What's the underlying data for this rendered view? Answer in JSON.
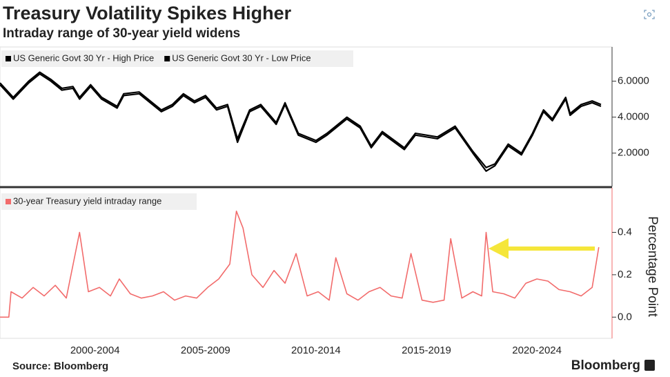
{
  "header": {
    "title": "Treasury Volatility Spikes Higher",
    "subtitle": "Intraday range of 30-year yield widens"
  },
  "footer": {
    "source": "Source: Bloomberg",
    "brand": "Bloomberg"
  },
  "chart_data": [
    {
      "type": "line",
      "x": [
        1998.2,
        1998.8,
        1999.5,
        2000.0,
        2000.5,
        2001.0,
        2001.5,
        2001.8,
        2002.3,
        2002.8,
        2003.5,
        2003.8,
        2004.5,
        2005.0,
        2005.5,
        2006.0,
        2006.5,
        2007.0,
        2007.5,
        2008.0,
        2008.5,
        2008.95,
        2009.5,
        2010.0,
        2010.7,
        2011.1,
        2011.7,
        2012.5,
        2013.0,
        2013.9,
        2014.5,
        2015.0,
        2015.5,
        2016.5,
        2017.0,
        2018.0,
        2018.8,
        2019.6,
        2020.2,
        2020.6,
        2021.2,
        2021.8,
        2022.3,
        2022.8,
        2023.2,
        2023.8,
        2024.0,
        2024.5,
        2025.0,
        2025.4
      ],
      "series": [
        {
          "name": "US Generic Govt 30 Yr - High Price",
          "color": "#000000",
          "values": [
            5.9,
            5.1,
            6.0,
            6.5,
            6.1,
            5.6,
            5.7,
            5.1,
            5.8,
            5.1,
            4.6,
            5.3,
            5.4,
            4.9,
            4.4,
            4.7,
            5.3,
            4.9,
            5.2,
            4.5,
            4.7,
            2.8,
            4.4,
            4.7,
            3.7,
            4.8,
            3.1,
            2.7,
            3.1,
            4.0,
            3.5,
            2.4,
            3.2,
            2.3,
            3.1,
            2.9,
            3.5,
            2.1,
            1.2,
            1.4,
            2.5,
            2.0,
            3.1,
            4.4,
            3.9,
            5.1,
            4.2,
            4.7,
            4.9,
            4.7
          ]
        },
        {
          "name": "US Generic Govt 30 Yr - Low Price",
          "color": "#000000",
          "values": [
            5.8,
            5.0,
            5.9,
            6.4,
            6.0,
            5.5,
            5.6,
            5.0,
            5.7,
            5.0,
            4.5,
            5.2,
            5.3,
            4.8,
            4.3,
            4.6,
            5.2,
            4.8,
            5.1,
            4.4,
            4.6,
            2.6,
            4.3,
            4.6,
            3.6,
            4.7,
            3.0,
            2.6,
            3.0,
            3.9,
            3.4,
            2.3,
            3.1,
            2.2,
            3.0,
            2.8,
            3.4,
            2.0,
            1.0,
            1.3,
            2.4,
            1.9,
            3.0,
            4.3,
            3.8,
            5.0,
            4.1,
            4.6,
            4.8,
            4.6
          ]
        }
      ],
      "xlim": [
        1998.2,
        2025.9
      ],
      "ylim": [
        0.15,
        7.9
      ],
      "yticks": [
        {
          "value": 2,
          "label": "2.0000"
        },
        {
          "value": 4,
          "label": "4.0000"
        },
        {
          "value": 6,
          "label": "6.0000"
        }
      ]
    },
    {
      "type": "line",
      "x": [
        1998.2,
        1998.6,
        1998.7,
        1999.2,
        1999.7,
        2000.2,
        2000.7,
        2001.2,
        2001.8,
        2002.2,
        2002.7,
        2003.2,
        2003.6,
        2004.1,
        2004.6,
        2005.1,
        2005.6,
        2006.1,
        2006.6,
        2007.1,
        2007.6,
        2008.1,
        2008.6,
        2008.9,
        2009.2,
        2009.6,
        2010.1,
        2010.6,
        2011.1,
        2011.6,
        2012.1,
        2012.6,
        2013.1,
        2013.4,
        2013.9,
        2014.4,
        2014.9,
        2015.4,
        2015.9,
        2016.4,
        2016.8,
        2017.3,
        2017.8,
        2018.3,
        2018.6,
        2019.1,
        2019.6,
        2020.0,
        2020.2,
        2020.5,
        2021.0,
        2021.5,
        2022.0,
        2022.5,
        2023.0,
        2023.5,
        2024.0,
        2024.5,
        2025.0,
        2025.3
      ],
      "series": [
        {
          "name": "30-year Treasury yield intraday range",
          "color": "#f26b6b",
          "values": [
            0,
            0,
            0.12,
            0.09,
            0.14,
            0.1,
            0.15,
            0.09,
            0.4,
            0.12,
            0.14,
            0.1,
            0.18,
            0.11,
            0.09,
            0.1,
            0.12,
            0.08,
            0.1,
            0.09,
            0.14,
            0.18,
            0.25,
            0.5,
            0.42,
            0.2,
            0.14,
            0.22,
            0.16,
            0.3,
            0.1,
            0.12,
            0.08,
            0.28,
            0.11,
            0.08,
            0.12,
            0.14,
            0.1,
            0.09,
            0.3,
            0.08,
            0.07,
            0.08,
            0.37,
            0.09,
            0.12,
            0.1,
            0.4,
            0.12,
            0.11,
            0.09,
            0.16,
            0.18,
            0.17,
            0.13,
            0.12,
            0.1,
            0.14,
            0.33
          ]
        }
      ],
      "xlim": [
        1998.2,
        2025.9
      ],
      "xticks": [
        {
          "value": 2002.5,
          "label": "2000-2004"
        },
        {
          "value": 2007.5,
          "label": "2005-2009"
        },
        {
          "value": 2012.5,
          "label": "2010-2014"
        },
        {
          "value": 2017.5,
          "label": "2015-2019"
        },
        {
          "value": 2022.5,
          "label": "2020-2024"
        }
      ],
      "ylim": [
        -0.1,
        0.61
      ],
      "yticks": [
        {
          "value": 0,
          "label": "0.0"
        },
        0.2,
        0.4
      ],
      "ylabel": "Percentage Point"
    }
  ]
}
